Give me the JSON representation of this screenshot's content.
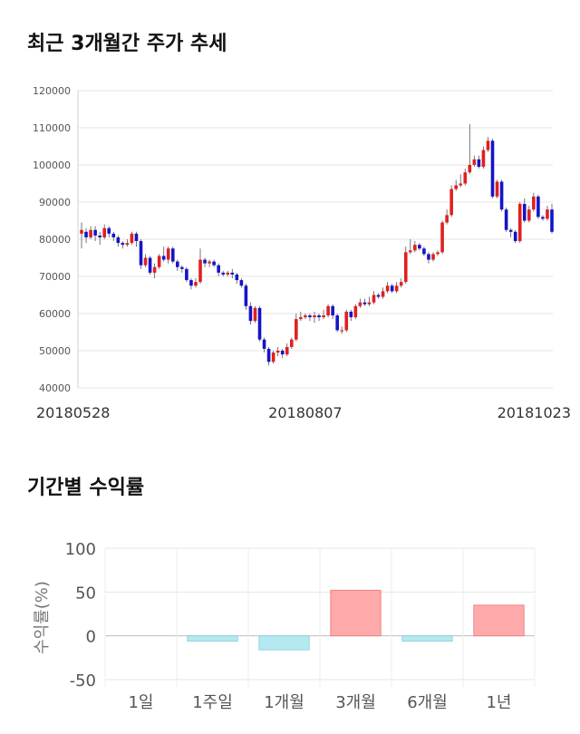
{
  "candle_section": {
    "title": "최근 3개월간 주가 추세"
  },
  "returns_section": {
    "title": "기간별 수익률"
  },
  "chart_data": [
    {
      "type": "candlestick",
      "title": "최근 3개월간 주가 추세",
      "ylim": [
        40000,
        120000
      ],
      "yticks": [
        "120000",
        "110000",
        "100000",
        "90000",
        "80000",
        "70000",
        "60000",
        "50000",
        "40000"
      ],
      "xticks": [
        {
          "label": "20180528",
          "index": 0
        },
        {
          "label": "20180807",
          "index": 49
        },
        {
          "label": "20181023",
          "index": 100
        }
      ],
      "grid": true,
      "colors": {
        "up": "#e02020",
        "down": "#1414c8"
      },
      "candles": [
        [
          81500,
          82500,
          84500,
          77500
        ],
        [
          82000,
          80500,
          83000,
          79000
        ],
        [
          80500,
          82500,
          83500,
          80000
        ],
        [
          82500,
          81000,
          83500,
          79500
        ],
        [
          81000,
          80500,
          82000,
          78500
        ],
        [
          80500,
          83000,
          84000,
          80000
        ],
        [
          83000,
          81500,
          83500,
          80500
        ],
        [
          81500,
          80500,
          82000,
          79500
        ],
        [
          80500,
          79000,
          81000,
          78000
        ],
        [
          79000,
          78500,
          79500,
          77500
        ],
        [
          78500,
          79000,
          80000,
          78000
        ],
        [
          79000,
          81500,
          82000,
          78500
        ],
        [
          81500,
          79500,
          82000,
          78000
        ],
        [
          79500,
          73000,
          80000,
          72000
        ],
        [
          73000,
          75000,
          76000,
          72500
        ],
        [
          75000,
          71000,
          75500,
          70500
        ],
        [
          71000,
          72500,
          73500,
          69500
        ],
        [
          72500,
          75500,
          76000,
          72000
        ],
        [
          75500,
          74500,
          78000,
          74000
        ],
        [
          74500,
          77500,
          78000,
          73500
        ],
        [
          77500,
          74000,
          78000,
          73500
        ],
        [
          74000,
          72500,
          74500,
          71500
        ],
        [
          72500,
          72000,
          73000,
          71000
        ],
        [
          72000,
          69000,
          72500,
          68500
        ],
        [
          69000,
          67500,
          69500,
          66500
        ],
        [
          67500,
          68500,
          69500,
          67000
        ],
        [
          68500,
          74500,
          77500,
          68000
        ],
        [
          74500,
          73500,
          75000,
          72500
        ],
        [
          73500,
          74000,
          74500,
          72500
        ],
        [
          74000,
          73000,
          74500,
          72500
        ],
        [
          73000,
          71000,
          73500,
          70000
        ],
        [
          71000,
          70500,
          71500,
          70000
        ],
        [
          70500,
          71000,
          71500,
          70000
        ],
        [
          71000,
          70500,
          72000,
          69500
        ],
        [
          70500,
          69000,
          71000,
          68000
        ],
        [
          69000,
          67500,
          69500,
          67000
        ],
        [
          67500,
          62000,
          68000,
          61000
        ],
        [
          62000,
          58000,
          63000,
          57000
        ],
        [
          58000,
          61500,
          62000,
          57500
        ],
        [
          61500,
          53000,
          62000,
          52500
        ],
        [
          53000,
          50500,
          53500,
          49500
        ],
        [
          50500,
          47000,
          51000,
          46000
        ],
        [
          47000,
          49500,
          50000,
          46500
        ],
        [
          49500,
          50000,
          51000,
          48500
        ],
        [
          50000,
          49000,
          50500,
          48000
        ],
        [
          49000,
          51000,
          52000,
          48500
        ],
        [
          51000,
          53000,
          53500,
          50500
        ],
        [
          53000,
          58500,
          60000,
          52500
        ],
        [
          58500,
          59000,
          60500,
          58000
        ],
        [
          59000,
          59500,
          60000,
          58500
        ],
        [
          59500,
          59000,
          60000,
          58000
        ],
        [
          59000,
          59500,
          60500,
          57500
        ],
        [
          59500,
          59000,
          60000,
          58000
        ],
        [
          59000,
          59500,
          61000,
          58500
        ],
        [
          59500,
          62000,
          62500,
          59000
        ],
        [
          62000,
          59500,
          62500,
          58500
        ],
        [
          59500,
          55500,
          60000,
          55000
        ],
        [
          55500,
          55500,
          56500,
          54500
        ],
        [
          55500,
          60500,
          61000,
          55000
        ],
        [
          60500,
          59000,
          61000,
          58000
        ],
        [
          59000,
          62000,
          62500,
          58500
        ],
        [
          62000,
          63000,
          64000,
          61500
        ],
        [
          63000,
          62500,
          64000,
          62000
        ],
        [
          62500,
          63000,
          64500,
          62000
        ],
        [
          63000,
          65000,
          66000,
          62500
        ],
        [
          65000,
          64500,
          65500,
          64000
        ],
        [
          64500,
          66000,
          67000,
          64000
        ],
        [
          66000,
          67500,
          68500,
          65500
        ],
        [
          67500,
          66000,
          68000,
          65500
        ],
        [
          66000,
          67500,
          68500,
          65500
        ],
        [
          67500,
          68500,
          69500,
          67000
        ],
        [
          68500,
          76500,
          78000,
          68000
        ],
        [
          76500,
          77000,
          80000,
          76000
        ],
        [
          77000,
          78500,
          79500,
          76500
        ],
        [
          78500,
          77500,
          79000,
          77000
        ],
        [
          77500,
          76000,
          78000,
          75500
        ],
        [
          76000,
          74500,
          76500,
          73500
        ],
        [
          74500,
          76000,
          76500,
          74000
        ],
        [
          76000,
          76500,
          77000,
          75500
        ],
        [
          76500,
          84500,
          85000,
          76000
        ],
        [
          84500,
          86500,
          88000,
          84000
        ],
        [
          86500,
          93500,
          94500,
          86000
        ],
        [
          93500,
          94500,
          96000,
          93000
        ],
        [
          94500,
          95000,
          97500,
          94000
        ],
        [
          95000,
          98000,
          99000,
          94500
        ],
        [
          98000,
          100000,
          111000,
          97500
        ],
        [
          100000,
          101500,
          102500,
          99500
        ],
        [
          101500,
          99500,
          102500,
          99000
        ],
        [
          99500,
          104000,
          105000,
          99000
        ],
        [
          104000,
          106500,
          107500,
          103500
        ],
        [
          106500,
          91500,
          107000,
          91000
        ],
        [
          91500,
          95500,
          96000,
          91000
        ],
        [
          95500,
          88000,
          96000,
          87500
        ],
        [
          88000,
          82500,
          88500,
          82000
        ],
        [
          82500,
          82000,
          83000,
          80500
        ],
        [
          82000,
          79500,
          82500,
          79000
        ],
        [
          79500,
          89500,
          90000,
          79000
        ],
        [
          89500,
          85000,
          91000,
          84500
        ],
        [
          85000,
          88000,
          89000,
          84500
        ],
        [
          88000,
          91500,
          92500,
          87500
        ],
        [
          91500,
          86000,
          92000,
          85500
        ],
        [
          86000,
          85500,
          86500,
          85000
        ],
        [
          85500,
          88000,
          89000,
          85000
        ],
        [
          88000,
          82000,
          89500,
          81500
        ]
      ]
    },
    {
      "type": "bar",
      "title": "기간별 수익률",
      "ylabel": "수익률(%)",
      "ylim": [
        -50,
        100
      ],
      "yticks": [
        100,
        50,
        0,
        -50
      ],
      "categories": [
        "1일",
        "1주일",
        "1개월",
        "3개월",
        "6개월",
        "1년"
      ],
      "values": [
        0,
        -6,
        -16,
        52,
        -6,
        35
      ],
      "colors": {
        "positive": "#ffaaaa",
        "negative": "#b5e9f2"
      },
      "grid": true
    }
  ]
}
